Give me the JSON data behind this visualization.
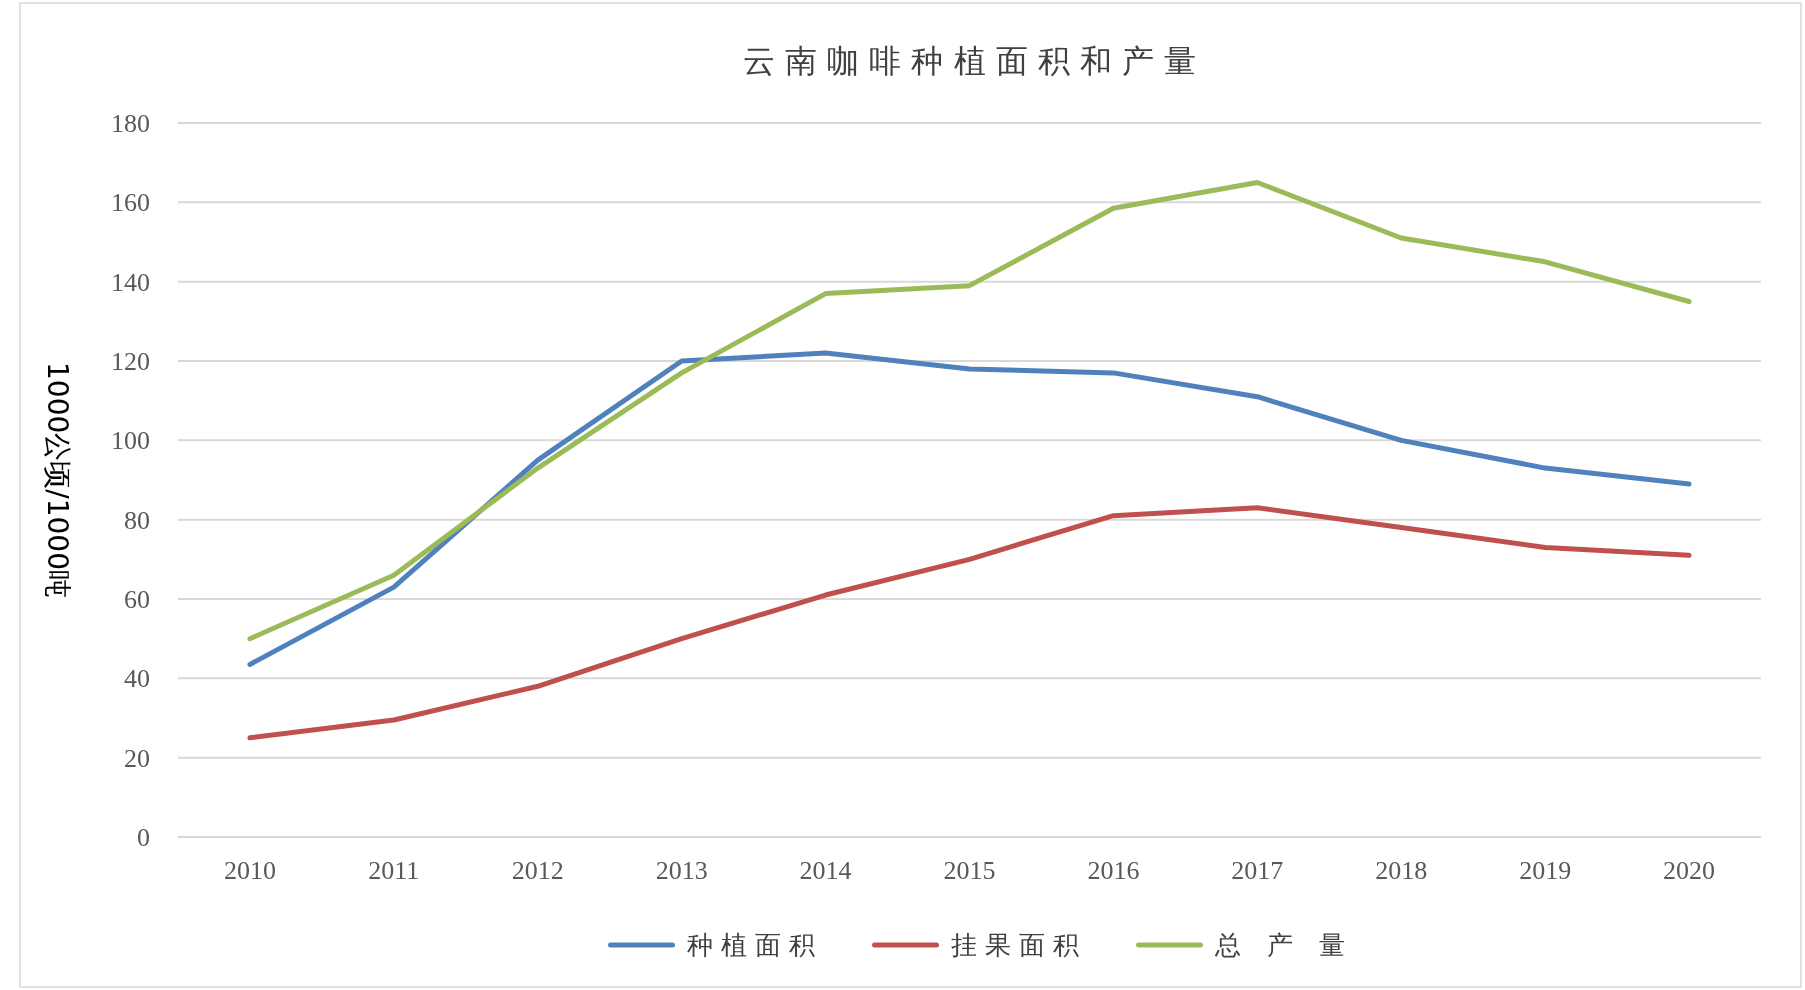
{
  "chart_data": {
    "type": "line",
    "title": "云 南 咖 啡 种 植 面 积 和 产 量",
    "ylabel": "1000公顷/1000吨",
    "categories": [
      "2010",
      "2011",
      "2012",
      "2013",
      "2014",
      "2015",
      "2016",
      "2017",
      "2018",
      "2019",
      "2020"
    ],
    "series": [
      {
        "name": "种 植 面 积",
        "color": "#4f81bd",
        "values": [
          43.5,
          63,
          95,
          120,
          122,
          118,
          117,
          111,
          100,
          93,
          89
        ]
      },
      {
        "name": "挂 果 面 积",
        "color": "#c0504d",
        "values": [
          25,
          29.5,
          38,
          50,
          61,
          70,
          81,
          83,
          78,
          73,
          71
        ]
      },
      {
        "name": "总　产　量",
        "color": "#9bbb59",
        "values": [
          50,
          66,
          93,
          117,
          137,
          139,
          158.5,
          165,
          151,
          145,
          135
        ]
      }
    ],
    "ylim": [
      0,
      180
    ],
    "yticks": [
      0,
      20,
      40,
      60,
      80,
      100,
      120,
      140,
      160,
      180
    ],
    "grid": "y",
    "legend": "bottom",
    "marker": "none",
    "line_style": "solid"
  }
}
